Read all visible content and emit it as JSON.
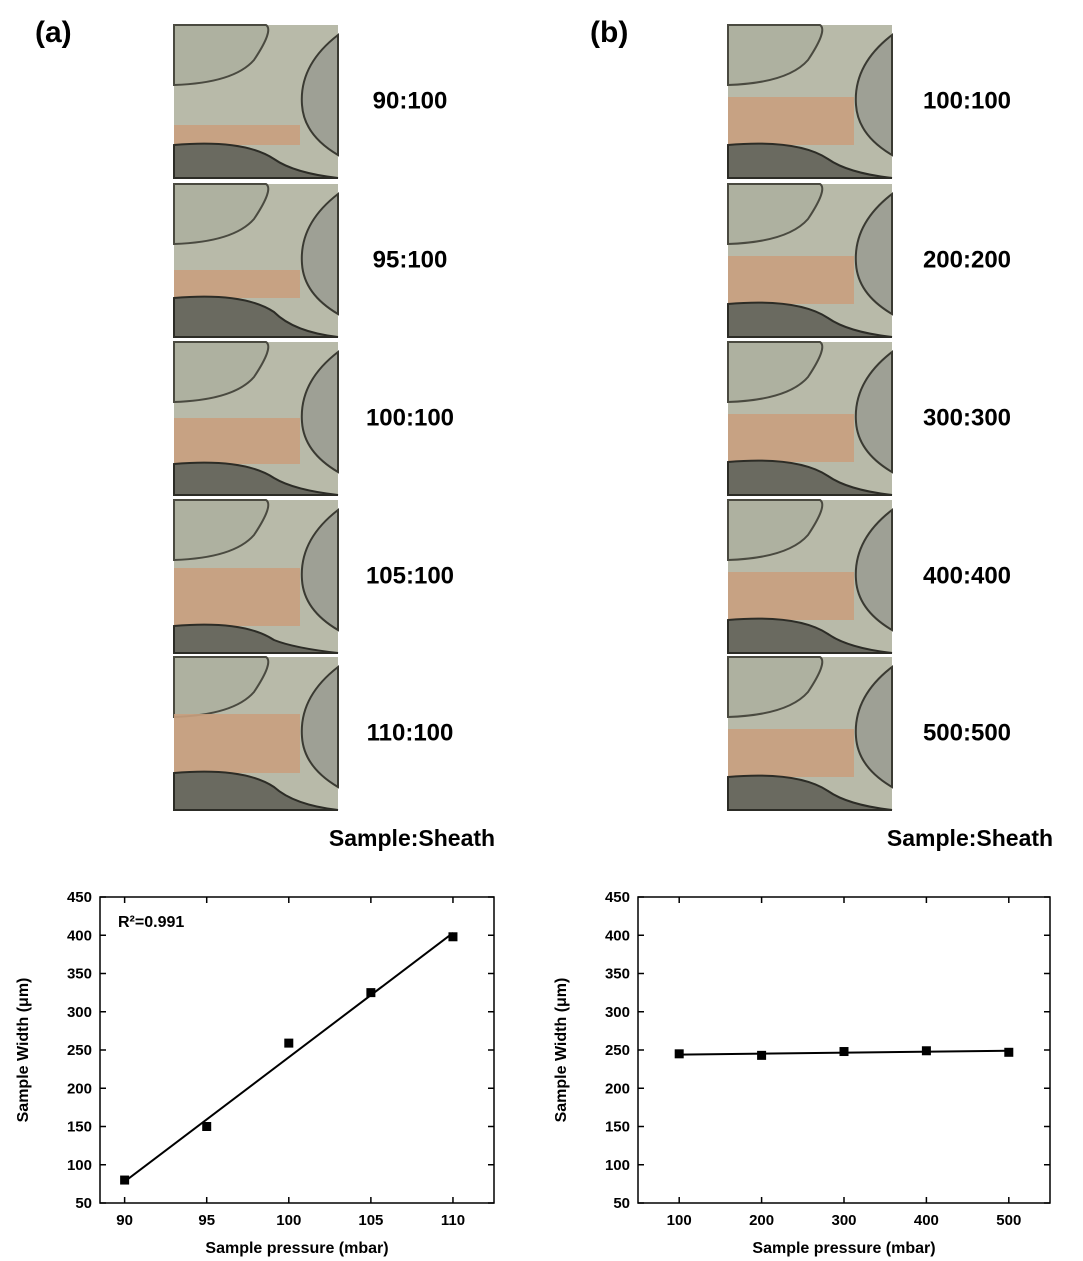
{
  "panels": [
    {
      "label": "(a)",
      "ratios": [
        "90:100",
        "95:100",
        "100:100",
        "105:100",
        "110:100"
      ],
      "caption": "Sample:Sheath"
    },
    {
      "label": "(b)",
      "ratios": [
        "100:100",
        "200:200",
        "300:300",
        "400:400",
        "500:500"
      ],
      "caption": "Sample:Sheath"
    }
  ],
  "chart_data": [
    {
      "type": "scatter",
      "x": [
        90,
        95,
        100,
        105,
        110
      ],
      "series": [
        {
          "color": "#000000",
          "values": [
            80,
            150,
            259,
            325,
            398
          ]
        },
        {
          "color": "#000000",
          "style": "line",
          "x": [
            90,
            110
          ],
          "values": [
            78,
            403
          ]
        }
      ],
      "annotation": "R²=0.991",
      "xlabel": "Sample pressure (mbar)",
      "ylabel": "Sample Width (μm)",
      "xlim": [
        88.5,
        112.5
      ],
      "ylim": [
        50,
        450
      ],
      "xticks": [
        90,
        95,
        100,
        105,
        110
      ],
      "yticks": [
        50,
        100,
        150,
        200,
        250,
        300,
        350,
        400,
        450
      ]
    },
    {
      "type": "scatter",
      "x": [
        100,
        200,
        300,
        400,
        500
      ],
      "series": [
        {
          "color": "#000000",
          "values": [
            245,
            243,
            248,
            249,
            247
          ]
        },
        {
          "color": "#000000",
          "style": "line",
          "x": [
            100,
            500
          ],
          "values": [
            244,
            249
          ]
        }
      ],
      "xlabel": "Sample pressure (mbar)",
      "ylabel": "Sample Width (μm)",
      "xlim": [
        50,
        550
      ],
      "ylim": [
        50,
        450
      ],
      "xticks": [
        100,
        200,
        300,
        400,
        500
      ],
      "yticks": [
        50,
        100,
        150,
        200,
        250,
        300,
        350,
        400,
        450
      ]
    }
  ]
}
